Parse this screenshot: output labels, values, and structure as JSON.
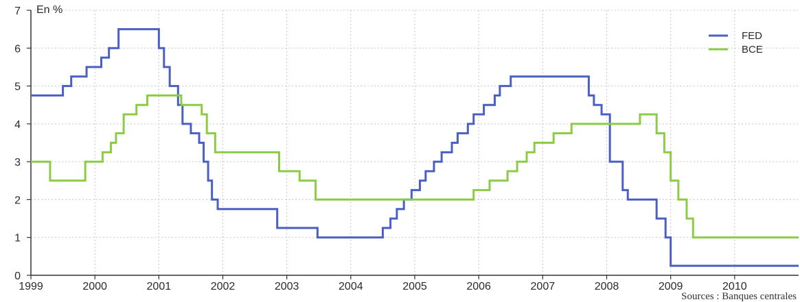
{
  "chart_data": {
    "type": "line",
    "step": true,
    "ylabel": "En %",
    "xlim": [
      1999,
      2011
    ],
    "ylim": [
      0,
      7
    ],
    "x_ticks": [
      "1999",
      "2000",
      "2001",
      "2002",
      "2003",
      "2004",
      "2005",
      "2006",
      "2007",
      "2008",
      "2009",
      "2010"
    ],
    "y_ticks": [
      "0",
      "1",
      "2",
      "3",
      "4",
      "5",
      "6",
      "7"
    ],
    "grid": true,
    "legend_position": "top-right",
    "source": "Sources : Banques centrales",
    "series": [
      {
        "name": "FED",
        "color": "#4a5fc1",
        "points": [
          [
            1999.0,
            4.75
          ],
          [
            1999.5,
            5.0
          ],
          [
            1999.63,
            5.25
          ],
          [
            1999.87,
            5.5
          ],
          [
            2000.1,
            5.75
          ],
          [
            2000.22,
            6.0
          ],
          [
            2000.37,
            6.5
          ],
          [
            2001.0,
            6.0
          ],
          [
            2001.08,
            5.5
          ],
          [
            2001.17,
            5.0
          ],
          [
            2001.3,
            4.5
          ],
          [
            2001.37,
            4.0
          ],
          [
            2001.5,
            3.75
          ],
          [
            2001.63,
            3.5
          ],
          [
            2001.7,
            3.0
          ],
          [
            2001.77,
            2.5
          ],
          [
            2001.83,
            2.0
          ],
          [
            2001.92,
            1.75
          ],
          [
            2002.85,
            1.25
          ],
          [
            2003.48,
            1.0
          ],
          [
            2004.5,
            1.25
          ],
          [
            2004.62,
            1.5
          ],
          [
            2004.72,
            1.75
          ],
          [
            2004.83,
            2.0
          ],
          [
            2004.95,
            2.25
          ],
          [
            2005.08,
            2.5
          ],
          [
            2005.17,
            2.75
          ],
          [
            2005.3,
            3.0
          ],
          [
            2005.42,
            3.25
          ],
          [
            2005.58,
            3.5
          ],
          [
            2005.67,
            3.75
          ],
          [
            2005.83,
            4.0
          ],
          [
            2005.92,
            4.25
          ],
          [
            2006.08,
            4.5
          ],
          [
            2006.25,
            4.75
          ],
          [
            2006.33,
            5.0
          ],
          [
            2006.5,
            5.25
          ],
          [
            2007.72,
            4.75
          ],
          [
            2007.8,
            4.5
          ],
          [
            2007.92,
            4.25
          ],
          [
            2008.05,
            3.0
          ],
          [
            2008.25,
            2.25
          ],
          [
            2008.33,
            2.0
          ],
          [
            2008.78,
            1.5
          ],
          [
            2008.92,
            1.0
          ],
          [
            2009.0,
            0.25
          ],
          [
            2011.0,
            0.25
          ]
        ]
      },
      {
        "name": "BCE",
        "color": "#8ccb45",
        "points": [
          [
            1999.0,
            3.0
          ],
          [
            1999.3,
            2.5
          ],
          [
            1999.85,
            3.0
          ],
          [
            2000.12,
            3.25
          ],
          [
            2000.25,
            3.5
          ],
          [
            2000.33,
            3.75
          ],
          [
            2000.45,
            4.25
          ],
          [
            2000.65,
            4.5
          ],
          [
            2000.82,
            4.75
          ],
          [
            2001.35,
            4.5
          ],
          [
            2001.67,
            4.25
          ],
          [
            2001.75,
            3.75
          ],
          [
            2001.88,
            3.25
          ],
          [
            2002.88,
            2.75
          ],
          [
            2003.2,
            2.5
          ],
          [
            2003.45,
            2.0
          ],
          [
            2005.92,
            2.25
          ],
          [
            2006.17,
            2.5
          ],
          [
            2006.45,
            2.75
          ],
          [
            2006.6,
            3.0
          ],
          [
            2006.75,
            3.25
          ],
          [
            2006.87,
            3.5
          ],
          [
            2007.17,
            3.75
          ],
          [
            2007.45,
            4.0
          ],
          [
            2008.52,
            4.25
          ],
          [
            2008.78,
            3.75
          ],
          [
            2008.9,
            3.25
          ],
          [
            2009.0,
            2.5
          ],
          [
            2009.12,
            2.0
          ],
          [
            2009.25,
            1.5
          ],
          [
            2009.35,
            1.0
          ],
          [
            2011.0,
            1.0
          ]
        ]
      }
    ]
  }
}
